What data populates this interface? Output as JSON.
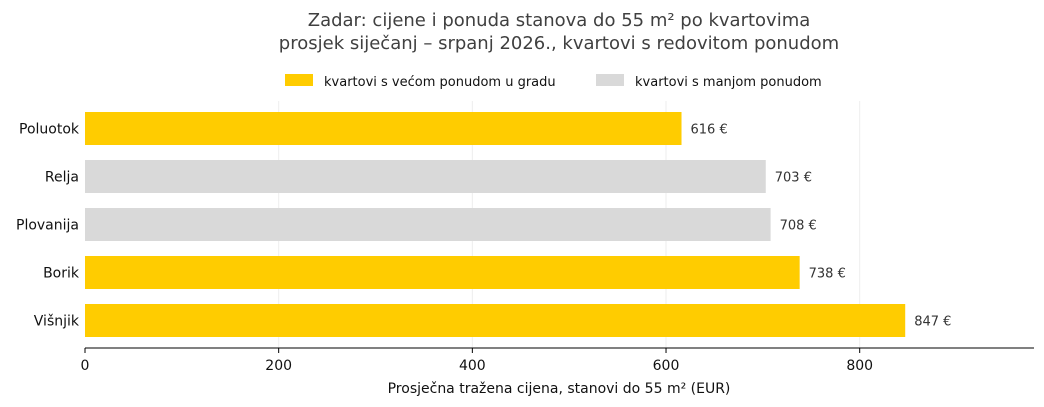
{
  "chart_data": {
    "type": "bar",
    "orientation": "horizontal",
    "title": [
      "Zadar: cijene i ponuda stanova do 55 m² po kvartovima",
      "prosjek siječanj – srpanj 2026., kvartovi s redovitom ponudom"
    ],
    "xlabel": "Prosječna tražena cijena, stanovi do 55 m² (EUR)",
    "ylabel": "",
    "xlim": [
      0,
      980
    ],
    "xticks": [
      0,
      200,
      400,
      600,
      800
    ],
    "grid": "vertical",
    "legend_position": "top-center",
    "legend": [
      {
        "label": "kvartovi s većom ponudom u gradu",
        "group": "veca",
        "color": "#FFCC00"
      },
      {
        "label": "kvartovi s manjom ponudom",
        "group": "manja",
        "color": "#D9D9D9"
      }
    ],
    "categories": [
      "Poluotok",
      "Relja",
      "Plovanija",
      "Borik",
      "Višnjik"
    ],
    "values": [
      616,
      703,
      708,
      738,
      847
    ],
    "value_labels": [
      "616 €",
      "703 €",
      "708 €",
      "738 €",
      "847 €"
    ],
    "groups": [
      "veca",
      "manja",
      "manja",
      "veca",
      "veca"
    ]
  }
}
